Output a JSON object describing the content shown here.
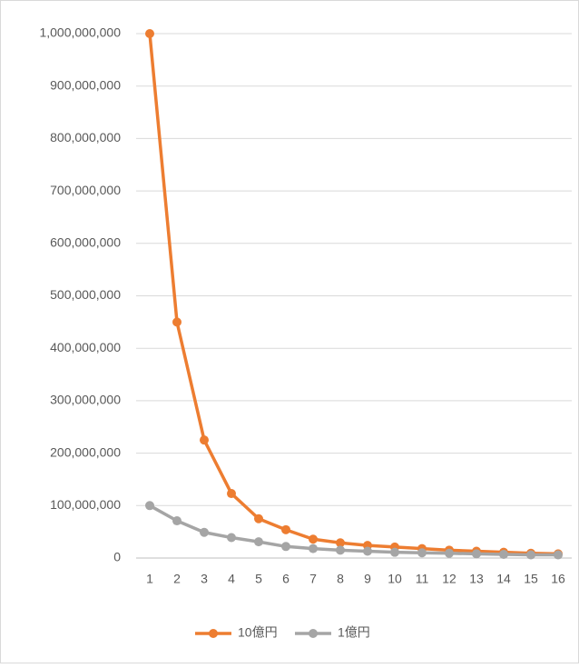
{
  "chart_data": {
    "type": "line",
    "categories": [
      1,
      2,
      3,
      4,
      5,
      6,
      7,
      8,
      9,
      10,
      11,
      12,
      13,
      14,
      15,
      16
    ],
    "series": [
      {
        "name": "10億円",
        "color": "#ed7d31",
        "values": [
          1000000000,
          450000000,
          225000000,
          123000000,
          75000000,
          54000000,
          36000000,
          29000000,
          24000000,
          21000000,
          18000000,
          15000000,
          13000000,
          11000000,
          9000000,
          8000000
        ]
      },
      {
        "name": "1億円",
        "color": "#a5a5a5",
        "values": [
          100000000,
          71000000,
          49000000,
          39000000,
          31000000,
          22000000,
          18000000,
          15000000,
          13000000,
          11000000,
          10000000,
          9000000,
          8000000,
          7000000,
          6000000,
          6000000
        ]
      }
    ],
    "ylim": [
      0,
      1000000000
    ],
    "yticks": [
      0,
      {
        "value": 100000000,
        "label": "100,000,000"
      },
      {
        "value": 200000000,
        "label": "200,000,000"
      },
      {
        "value": 300000000,
        "label": "300,000,000"
      },
      {
        "value": 400000000,
        "label": "400,000,000"
      },
      {
        "value": 500000000,
        "label": "500,000,000"
      },
      {
        "value": 600000000,
        "label": "600,000,000"
      },
      {
        "value": 700000000,
        "label": "700,000,000"
      },
      {
        "value": 800000000,
        "label": "800,000,000"
      },
      {
        "value": 900000000,
        "label": "900,000,000"
      },
      {
        "value": 1000000000,
        "label": "1,000,000,000"
      }
    ],
    "grid": true,
    "legend": "bottom"
  }
}
